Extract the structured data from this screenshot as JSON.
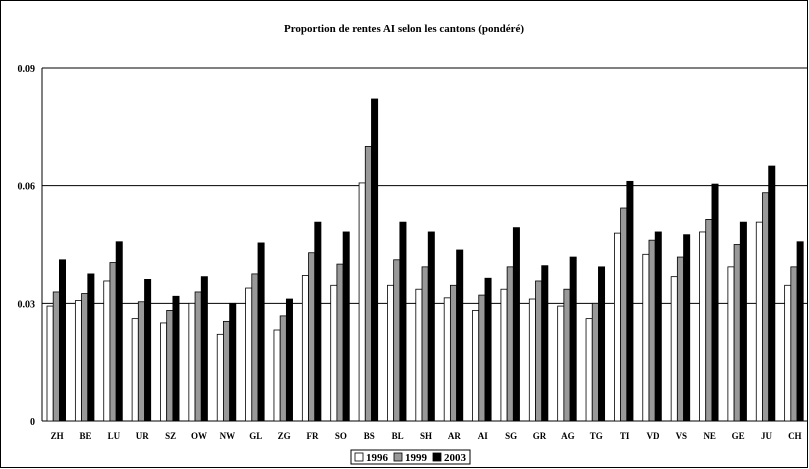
{
  "chart_data": {
    "type": "bar",
    "title": "Proportion de rentes AI selon les cantons (pondéré)",
    "xlabel": "",
    "ylabel": "",
    "ylim": [
      0,
      0.09
    ],
    "yticks": [
      "0",
      "0.03",
      "0.06",
      "0.09"
    ],
    "grid": true,
    "legend_position": "bottom",
    "categories": [
      "ZH",
      "BE",
      "LU",
      "UR",
      "SZ",
      "OW",
      "NW",
      "GL",
      "ZG",
      "FR",
      "SO",
      "BS",
      "BL",
      "SH",
      "AR",
      "AI",
      "SG",
      "GR",
      "AG",
      "TG",
      "TI",
      "VD",
      "VS",
      "NE",
      "GE",
      "JU",
      "CH"
    ],
    "series": [
      {
        "name": "1996",
        "color": "#ffffff",
        "values": [
          0.0293,
          0.0307,
          0.0357,
          0.0261,
          0.025,
          0.03,
          0.0221,
          0.0339,
          0.0232,
          0.0371,
          0.0346,
          0.0607,
          0.0346,
          0.0336,
          0.0314,
          0.0282,
          0.0336,
          0.0311,
          0.0293,
          0.0261,
          0.0479,
          0.0425,
          0.0368,
          0.0482,
          0.0393,
          0.0507,
          0.0346
        ]
      },
      {
        "name": "1999",
        "color": "#999999",
        "values": [
          0.0329,
          0.0325,
          0.0404,
          0.0304,
          0.0282,
          0.0329,
          0.0254,
          0.0375,
          0.0268,
          0.0429,
          0.04,
          0.07,
          0.0411,
          0.0393,
          0.0346,
          0.0321,
          0.0393,
          0.0357,
          0.0336,
          0.03,
          0.0543,
          0.0461,
          0.0418,
          0.0514,
          0.045,
          0.0582,
          0.0393
        ]
      },
      {
        "name": "2003",
        "color": "#000000",
        "values": [
          0.0411,
          0.0375,
          0.0457,
          0.0361,
          0.0318,
          0.0368,
          0.03,
          0.0454,
          0.0311,
          0.0507,
          0.0482,
          0.0821,
          0.0507,
          0.0482,
          0.0436,
          0.0364,
          0.0493,
          0.0396,
          0.0418,
          0.0393,
          0.0611,
          0.0482,
          0.0475,
          0.0604,
          0.0507,
          0.065,
          0.0457
        ]
      }
    ]
  }
}
